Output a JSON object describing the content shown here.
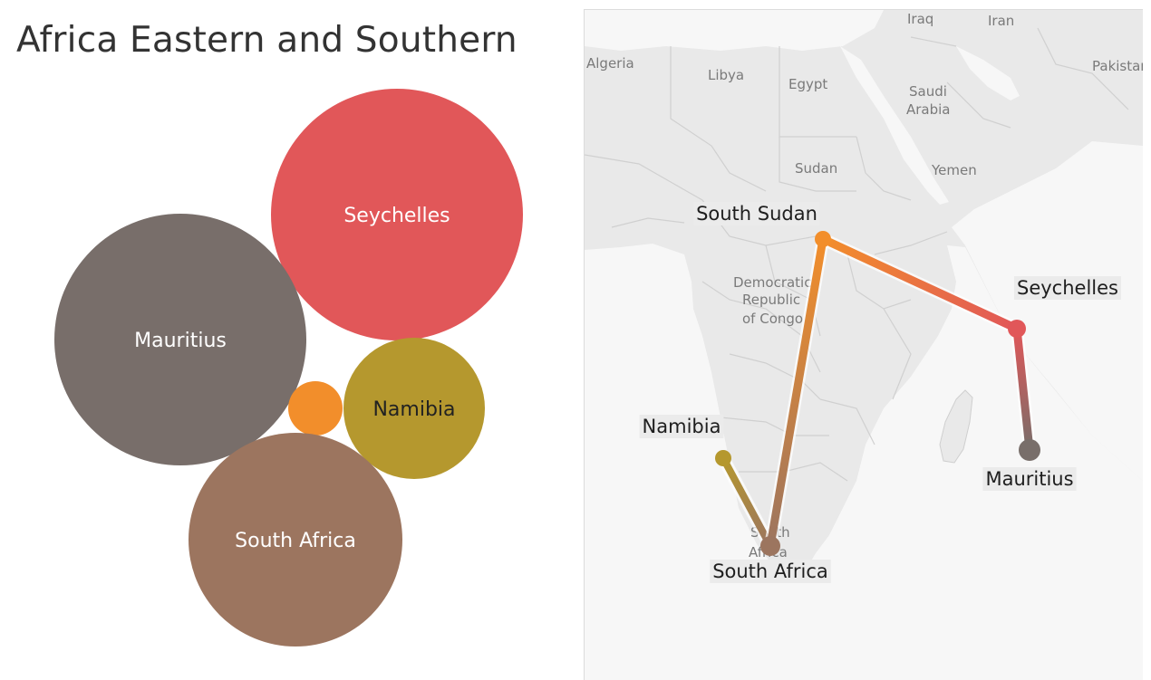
{
  "title": "Africa Eastern and Southern",
  "bubbles": [
    {
      "name": "Seychelles",
      "label": "Seychelles",
      "color": "#e15759",
      "label_color": "#ffffff"
    },
    {
      "name": "Mauritius",
      "label": "Mauritius",
      "color": "#786e6a",
      "label_color": "#ffffff"
    },
    {
      "name": "Namibia",
      "label": "Namibia",
      "color": "#b5982e",
      "label_color": "#222222"
    },
    {
      "name": "South Sudan",
      "label": "",
      "color": "#f28e2b",
      "label_color": "#ffffff"
    },
    {
      "name": "South Africa",
      "label": "South Africa",
      "color": "#9c755f",
      "label_color": "#ffffff"
    }
  ],
  "map": {
    "geo_labels": [
      "Algeria",
      "Libya",
      "Egypt",
      "Iraq",
      "Iran",
      "Pakistan",
      "Saudi",
      "Arabia",
      "Sudan",
      "Yemen",
      "Democratic",
      "Republic",
      "of Congo",
      "South",
      "Africa"
    ],
    "points": [
      {
        "name": "South Sudan",
        "label": "South Sudan",
        "color": "#f28e2b"
      },
      {
        "name": "Seychelles",
        "label": "Seychelles",
        "color": "#e15759"
      },
      {
        "name": "Mauritius",
        "label": "Mauritius",
        "color": "#786e6a"
      },
      {
        "name": "Namibia",
        "label": "Namibia",
        "color": "#b5982e"
      },
      {
        "name": "South Africa",
        "label": "South Africa",
        "color": "#9c755f"
      }
    ],
    "routes": [
      {
        "from": "South Sudan",
        "to": "Seychelles"
      },
      {
        "from": "Seychelles",
        "to": "Mauritius"
      },
      {
        "from": "Namibia",
        "to": "South Africa"
      },
      {
        "from": "South Africa",
        "to": "South Sudan"
      }
    ]
  }
}
